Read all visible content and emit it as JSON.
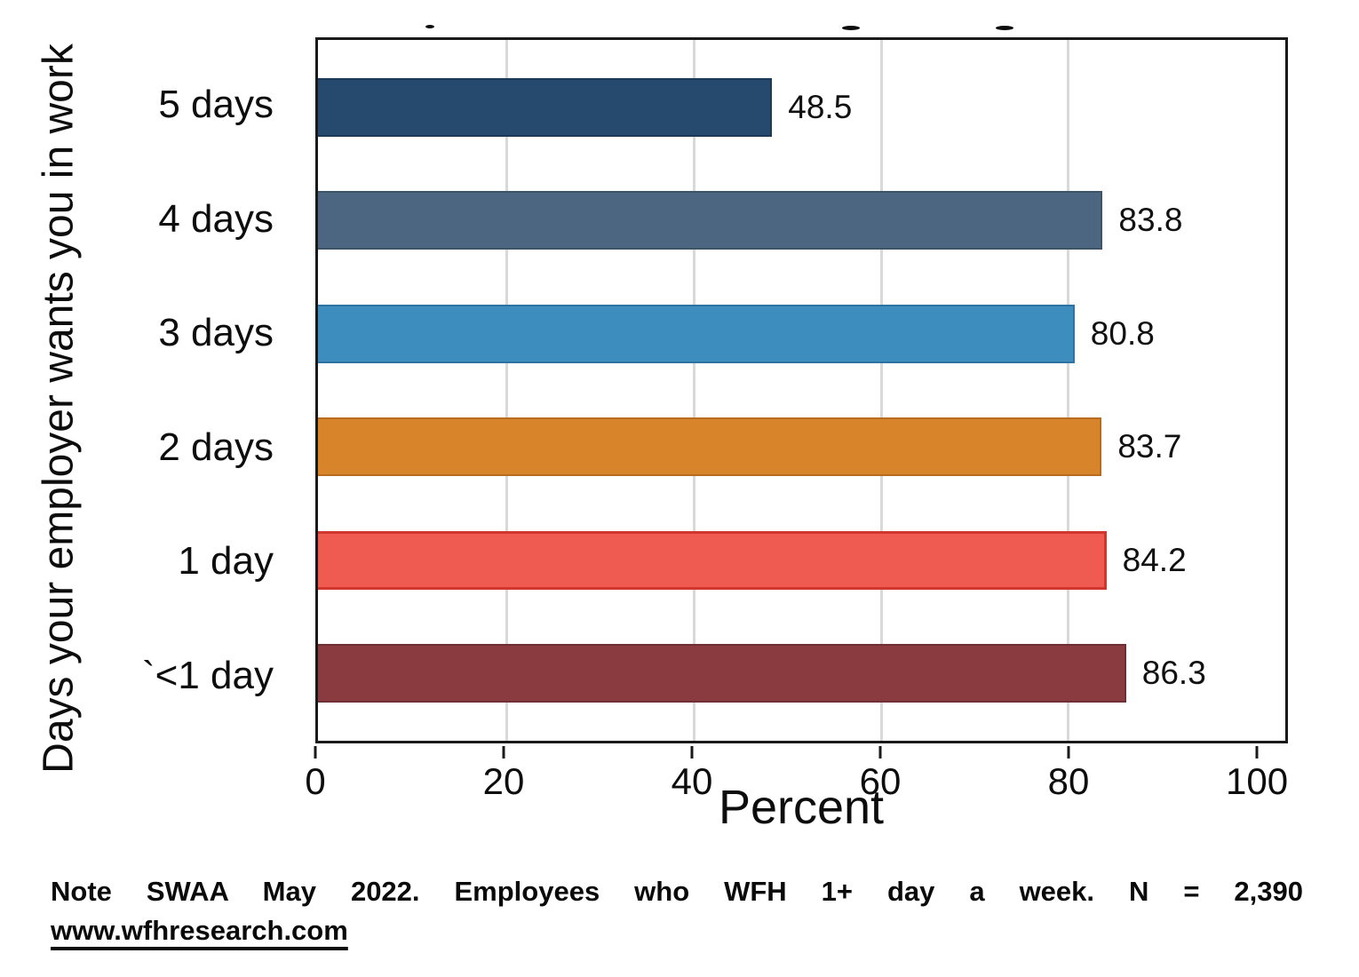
{
  "figure": {
    "y_axis_label": "Days your employer wants you in work",
    "x_axis_label": "Percent",
    "note_line1": "Note SWAA May 2022. Employees who WFH 1+ day a week. N = 2,390",
    "source_link": "www.wfhresearch.com"
  },
  "chart_data": {
    "type": "bar",
    "orientation": "horizontal",
    "categories": [
      "5 days",
      "4 days",
      "3 days",
      "2 days",
      "1 day",
      "`<1 day"
    ],
    "values": [
      48.5,
      83.8,
      80.8,
      83.7,
      84.2,
      86.3
    ],
    "value_labels": [
      "48.5",
      "83.8",
      "80.8",
      "83.7",
      "84.2",
      "86.3"
    ],
    "xlabel": "Percent",
    "ylabel": "Days your employer wants you in work",
    "xlim": [
      0,
      103.3
    ],
    "x_ticks": [
      0,
      20,
      40,
      60,
      80,
      100
    ],
    "grid_values": [
      20,
      40,
      60,
      80
    ],
    "grid": true,
    "legend": false,
    "bar_colors": [
      "#254A6E",
      "#4C6681",
      "#3D8EBE",
      "#D8842B",
      "#EF5A51",
      "#8A3B40"
    ],
    "bar_border_colors": [
      "#1C3A58",
      "#3D5368",
      "#2F74A0",
      "#B76C20",
      "#D1362E",
      "#6F2F34"
    ],
    "note": "Note SWAA May 2022. Employees who WFH 1+ day a week. N = 2,390",
    "source": "www.wfhresearch.com",
    "colors": {
      "axis_frame": "#1a1a1a",
      "gridline": "#d9d9d9",
      "text": "#0d0d0d",
      "background": "#ffffff"
    }
  }
}
